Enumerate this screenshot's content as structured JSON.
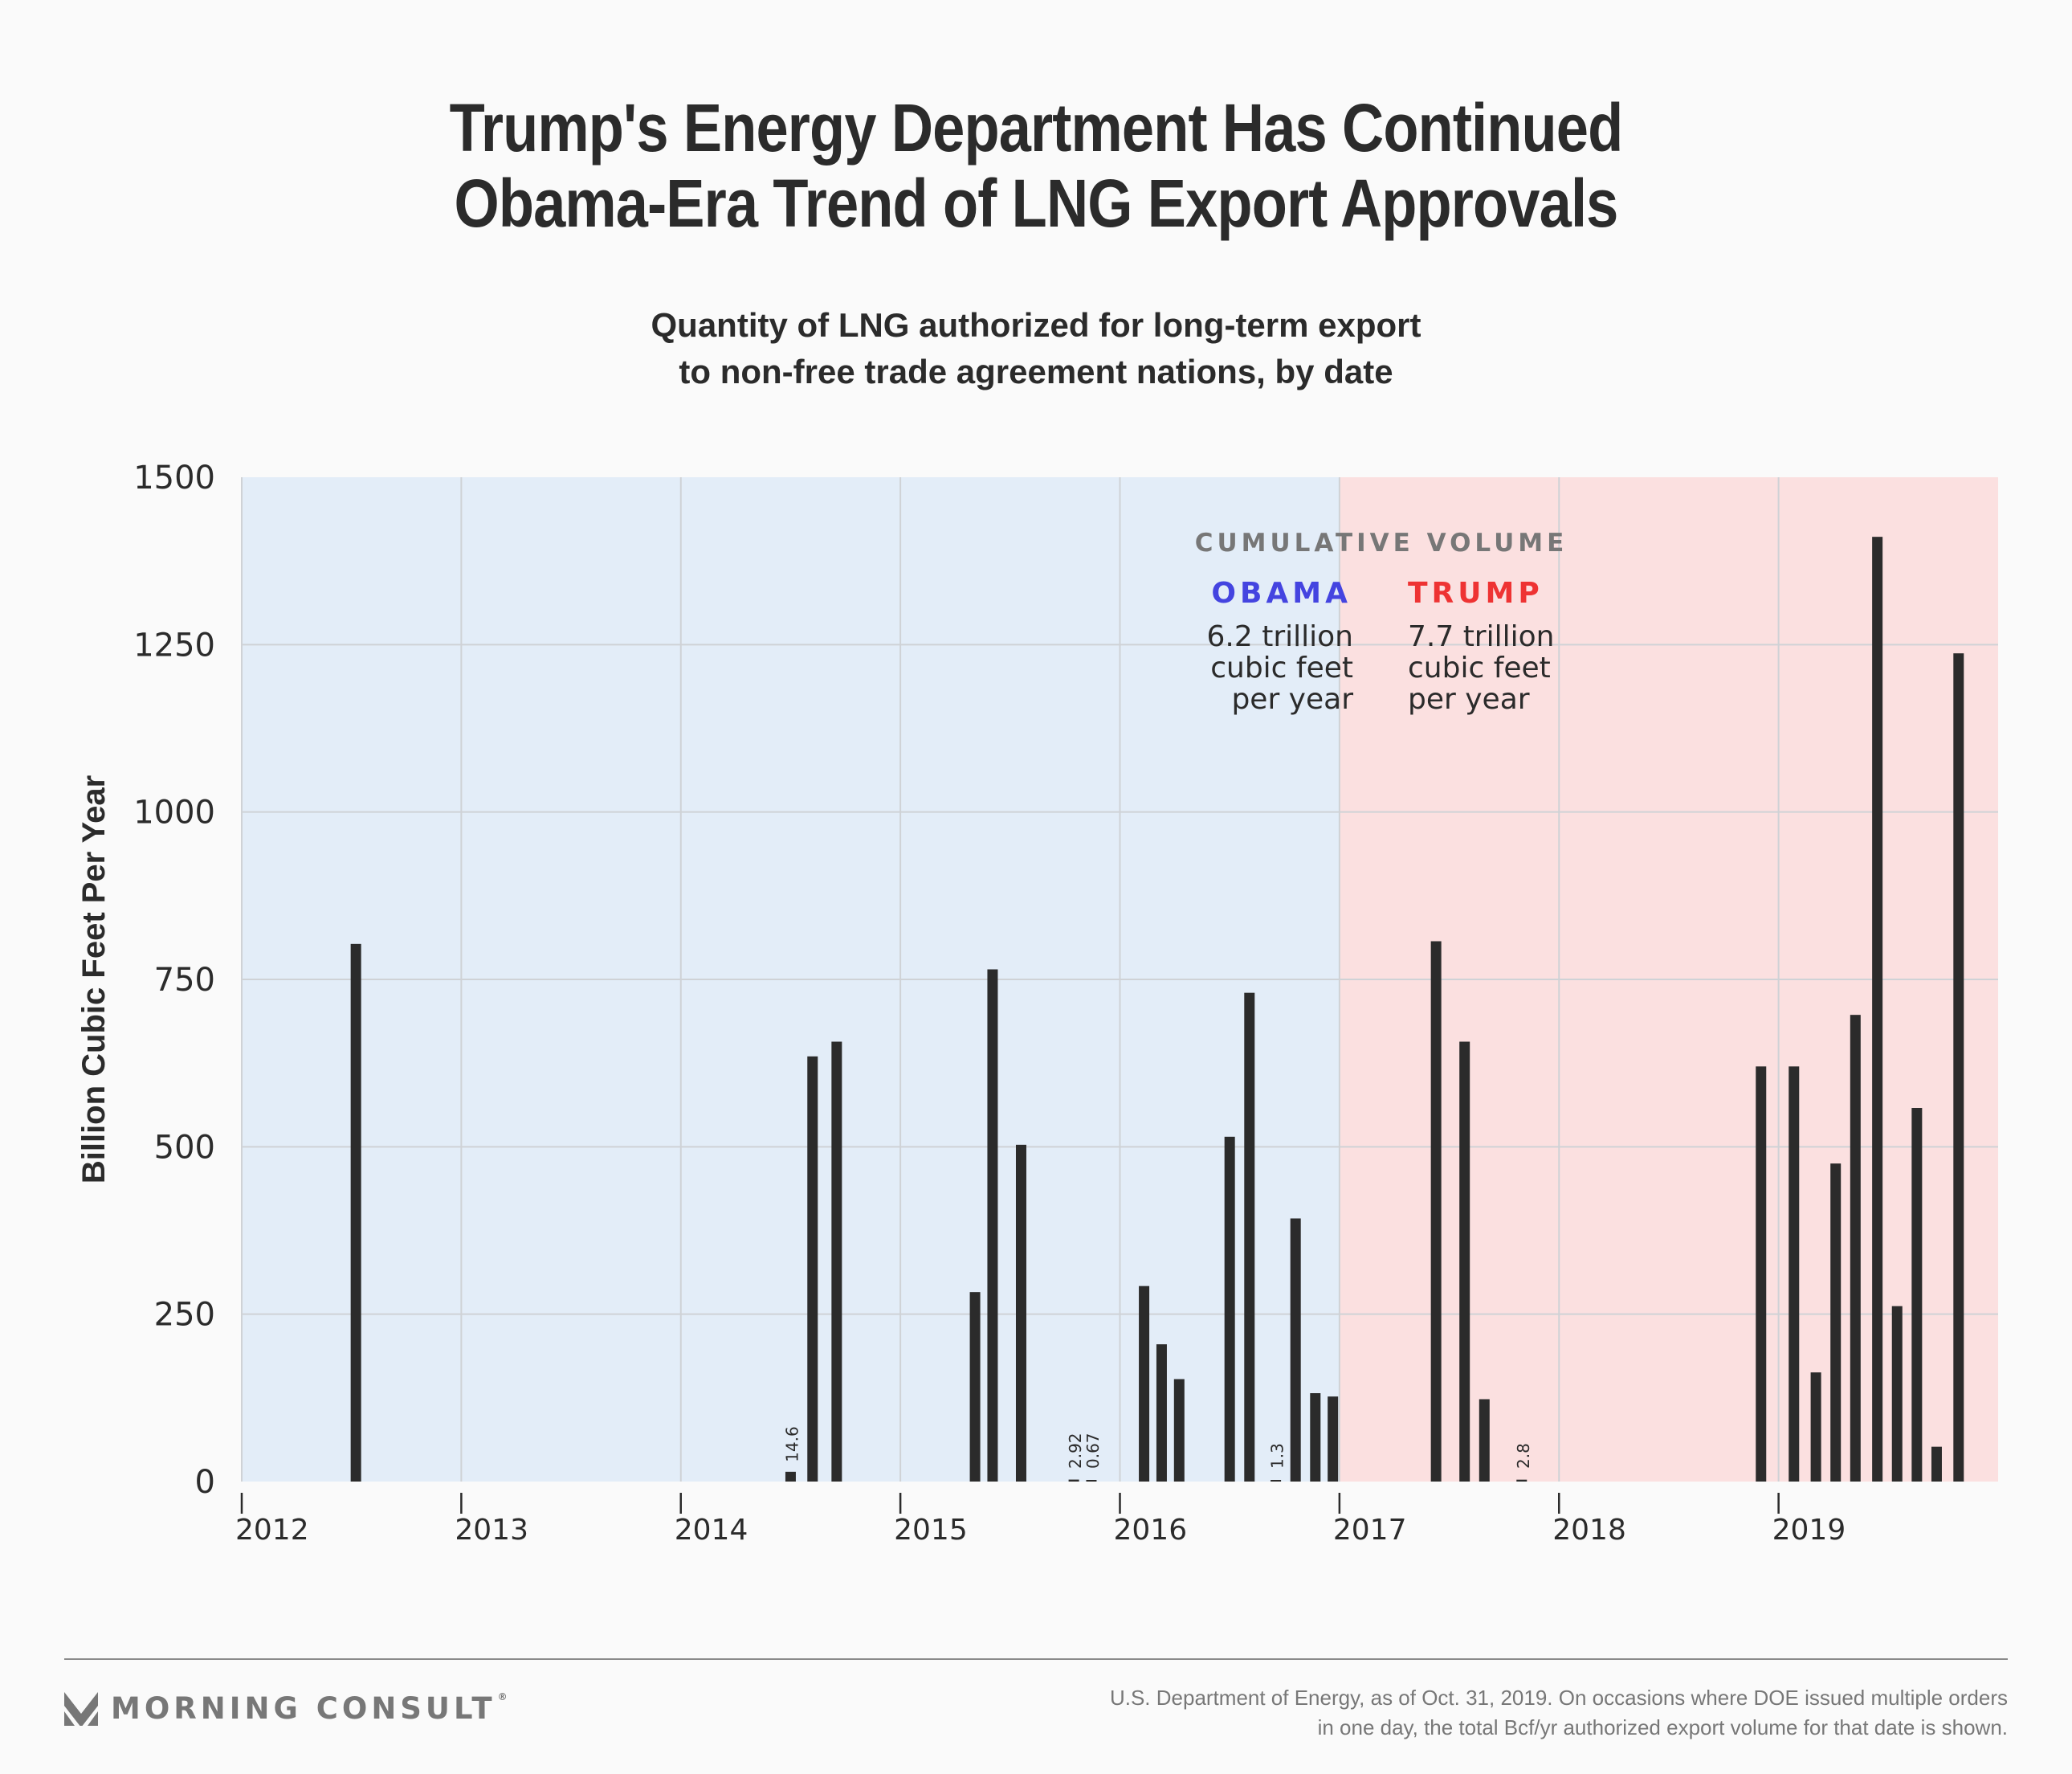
{
  "header": {
    "title_line1": "Trump's Energy Department Has Continued",
    "title_line2": "Obama-Era Trend of LNG Export Approvals",
    "subtitle_line1": "Quantity of LNG authorized for long-term export",
    "subtitle_line2": "to non-free trade agreement nations, by date"
  },
  "colors": {
    "obama_region": "#e3edf8",
    "trump_region": "#fbe0e0",
    "bar": "#2b2b2b",
    "grid": "#cfd2d6",
    "obama_label": "#4444e0",
    "trump_label": "#ee3333",
    "cumulative_label": "#777777"
  },
  "annotation": {
    "heading": "CUMULATIVE VOLUME",
    "obama": {
      "name": "OBAMA",
      "lines": [
        "6.2 trillion",
        "cubic feet",
        "per year"
      ]
    },
    "trump": {
      "name": "TRUMP",
      "lines": [
        "7.7 trillion",
        "cubic feet",
        "per year"
      ]
    }
  },
  "chart_data": {
    "type": "bar",
    "title": "Trump's Energy Department Has Continued Obama-Era Trend of LNG Export Approvals",
    "subtitle": "Quantity of LNG authorized for long-term export to non-free trade agreement nations, by date",
    "xlabel": "",
    "ylabel": "Billion Cubic Feet Per Year",
    "xlim": [
      2012,
      2020
    ],
    "ylim": [
      0,
      1500
    ],
    "yticks": [
      0,
      250,
      500,
      750,
      1000,
      1250,
      1500
    ],
    "xticks": [
      2012,
      2013,
      2014,
      2015,
      2016,
      2017,
      2018,
      2019
    ],
    "grid": true,
    "regions": [
      {
        "name": "Obama",
        "from": 2012,
        "to": 2017
      },
      {
        "name": "Trump",
        "from": 2017,
        "to": 2020
      }
    ],
    "series": [
      {
        "name": "Authorized export volume (Bcf/yr)",
        "points": [
          {
            "x": 2012.52,
            "y": 803
          },
          {
            "x": 2014.5,
            "y": 14.6,
            "label": "14.6"
          },
          {
            "x": 2014.6,
            "y": 635
          },
          {
            "x": 2014.71,
            "y": 657
          },
          {
            "x": 2015.34,
            "y": 283
          },
          {
            "x": 2015.42,
            "y": 765
          },
          {
            "x": 2015.55,
            "y": 503
          },
          {
            "x": 2015.79,
            "y": 2.92,
            "label": "2.92"
          },
          {
            "x": 2015.87,
            "y": 0.67,
            "label": "0.67"
          },
          {
            "x": 2016.11,
            "y": 292
          },
          {
            "x": 2016.19,
            "y": 205
          },
          {
            "x": 2016.27,
            "y": 153
          },
          {
            "x": 2016.5,
            "y": 515
          },
          {
            "x": 2016.59,
            "y": 730
          },
          {
            "x": 2016.71,
            "y": 1.3,
            "label": "1.3"
          },
          {
            "x": 2016.8,
            "y": 393
          },
          {
            "x": 2016.89,
            "y": 132
          },
          {
            "x": 2016.97,
            "y": 127
          },
          {
            "x": 2017.44,
            "y": 807
          },
          {
            "x": 2017.57,
            "y": 657
          },
          {
            "x": 2017.66,
            "y": 123
          },
          {
            "x": 2017.83,
            "y": 2.8,
            "label": "2.8"
          },
          {
            "x": 2018.92,
            "y": 620
          },
          {
            "x": 2019.07,
            "y": 620
          },
          {
            "x": 2019.17,
            "y": 163
          },
          {
            "x": 2019.26,
            "y": 475
          },
          {
            "x": 2019.35,
            "y": 697
          },
          {
            "x": 2019.45,
            "y": 1411
          },
          {
            "x": 2019.54,
            "y": 262
          },
          {
            "x": 2019.63,
            "y": 558
          },
          {
            "x": 2019.72,
            "y": 52
          },
          {
            "x": 2019.82,
            "y": 1237
          }
        ]
      }
    ],
    "legend": "none"
  },
  "footer": {
    "logo_text": "MORNING CONSULT",
    "logo_mark": "®",
    "source_line1": "U.S. Department of Energy, as of Oct. 31, 2019. On occasions where DOE issued multiple orders",
    "source_line2": "in one day, the total Bcf/yr authorized export volume for that date is shown."
  }
}
